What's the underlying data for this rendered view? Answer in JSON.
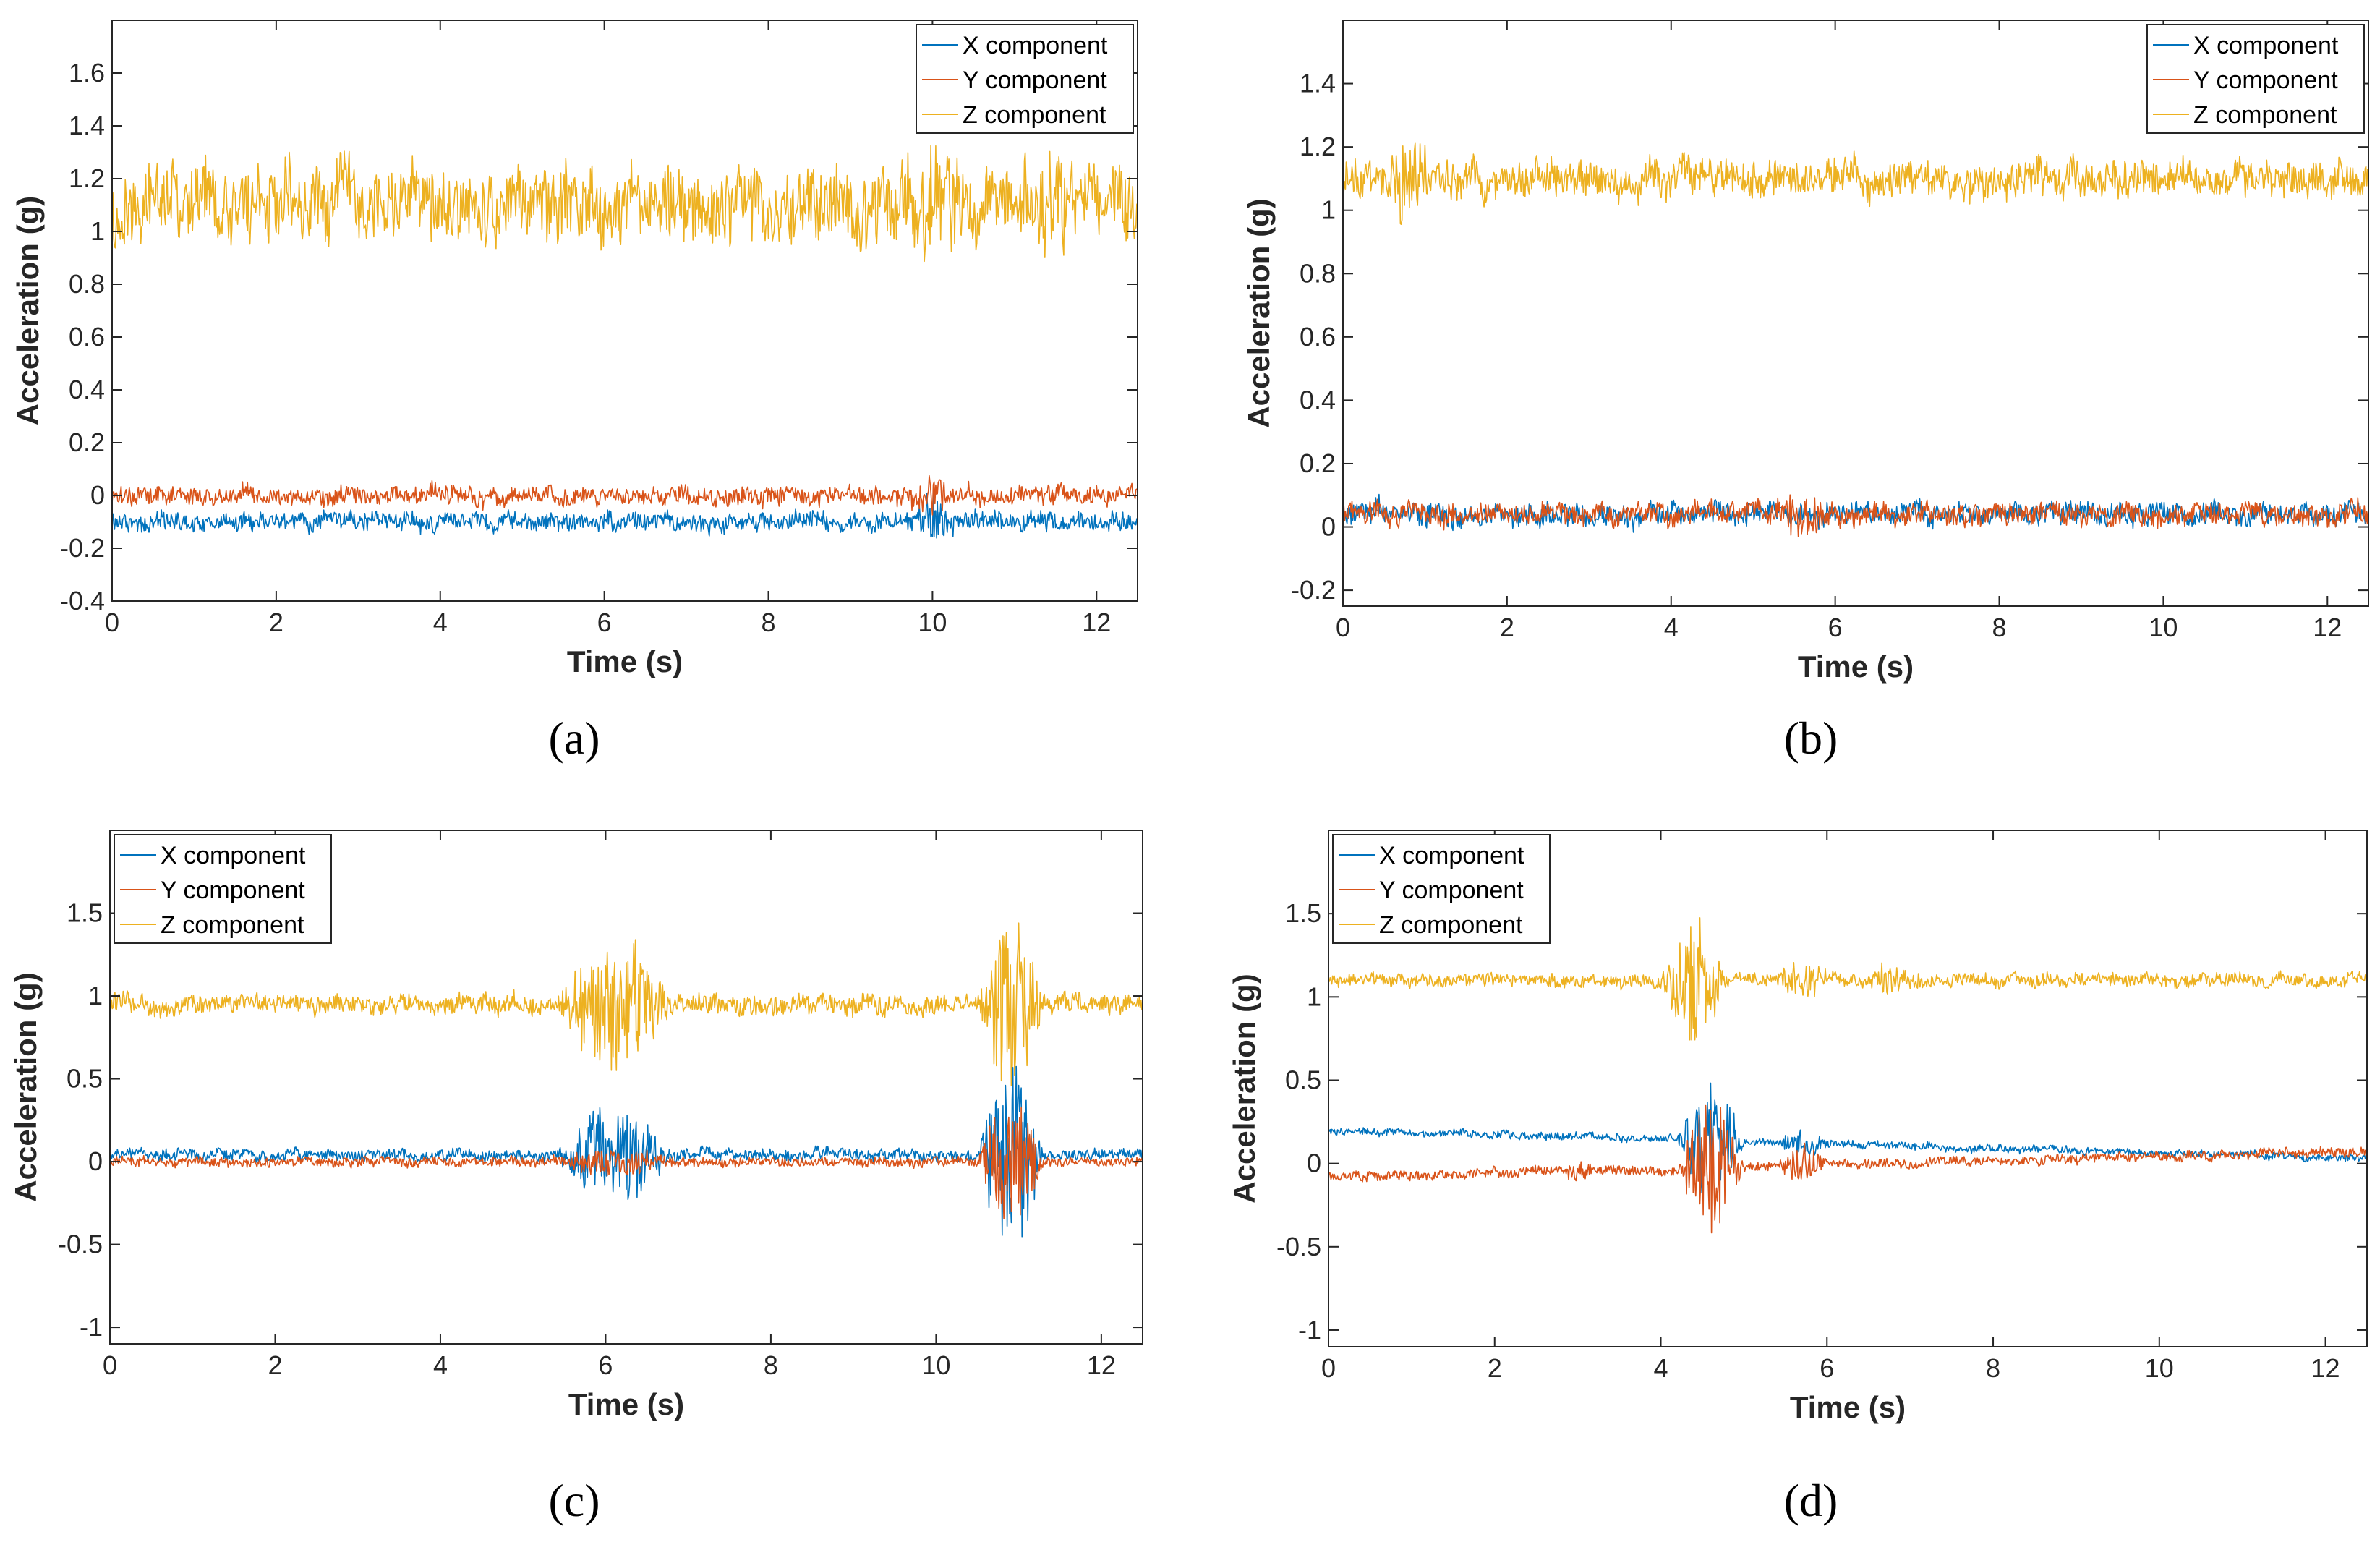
{
  "colors": {
    "x_component": "#0072BD",
    "y_component": "#D95319",
    "z_component": "#EDB120",
    "axis": "#262626"
  },
  "chart_data": [
    {
      "type": "line",
      "caption": "(a)",
      "xlabel": "Time (s)",
      "ylabel": "Acceleration (g)",
      "xlim": [
        0,
        12.5
      ],
      "ylim": [
        -0.4,
        1.8
      ],
      "xticks": [
        0,
        2,
        4,
        6,
        8,
        10,
        12
      ],
      "yticks": [
        -0.4,
        -0.2,
        0,
        0.2,
        0.4,
        0.6,
        0.8,
        1,
        1.2,
        1.4,
        1.6
      ],
      "ytick_labels": [
        "-0.4",
        "-0.2",
        "0",
        "0.2",
        "0.4",
        "0.6",
        "0.8",
        "1",
        "1.2",
        "1.4",
        "1.6"
      ],
      "legend": [
        "X component",
        "Y component",
        "Z component"
      ],
      "legend_position": "top-right",
      "series": [
        {
          "name": "X component",
          "color": "#0072BD",
          "approx_mean": -0.1,
          "noise_amplitude": 0.03,
          "events": [
            {
              "t": 10.0,
              "amplitude": 0.08,
              "width": 0.3
            }
          ]
        },
        {
          "name": "Y component",
          "color": "#D95319",
          "approx_mean": 0.0,
          "noise_amplitude": 0.03,
          "events": [
            {
              "t": 10.0,
              "amplitude": 0.06,
              "width": 0.3
            }
          ]
        },
        {
          "name": "Z component",
          "color": "#EDB120",
          "approx_mean": 1.1,
          "noise_amplitude": 0.12,
          "events": [
            {
              "t": 10.0,
              "amplitude": 0.15,
              "width": 0.5
            },
            {
              "t": 11.5,
              "amplitude": 0.1,
              "width": 0.4
            }
          ]
        }
      ]
    },
    {
      "type": "line",
      "caption": "(b)",
      "xlabel": "Time (s)",
      "ylabel": "Acceleration (g)",
      "xlim": [
        0,
        12.5
      ],
      "ylim": [
        -0.25,
        1.6
      ],
      "xticks": [
        0,
        2,
        4,
        6,
        8,
        10,
        12
      ],
      "yticks": [
        -0.2,
        0,
        0.2,
        0.4,
        0.6,
        0.8,
        1,
        1.2,
        1.4
      ],
      "ytick_labels": [
        "-0.2",
        "0",
        "0.2",
        "0.4",
        "0.6",
        "0.8",
        "1",
        "1.2",
        "1.4"
      ],
      "legend": [
        "X component",
        "Y component",
        "Z component"
      ],
      "legend_position": "top-right",
      "series": [
        {
          "name": "X component",
          "color": "#0072BD",
          "approx_mean": 0.04,
          "noise_amplitude": 0.03,
          "events": []
        },
        {
          "name": "Y component",
          "color": "#D95319",
          "approx_mean": 0.04,
          "noise_amplitude": 0.03,
          "events": [
            {
              "t": 5.6,
              "amplitude": 0.07,
              "width": 0.4
            }
          ]
        },
        {
          "name": "Z component",
          "color": "#EDB120",
          "approx_mean": 1.1,
          "noise_amplitude": 0.05,
          "events": [
            {
              "t": 0.8,
              "amplitude": 0.15,
              "width": 0.3
            }
          ]
        }
      ]
    },
    {
      "type": "line",
      "caption": "(c)",
      "xlabel": "Time (s)",
      "ylabel": "Acceleration (g)",
      "xlim": [
        0,
        12.5
      ],
      "ylim": [
        -1.1,
        2.0
      ],
      "xticks": [
        0,
        2,
        4,
        6,
        8,
        10,
        12
      ],
      "yticks": [
        -1,
        -0.5,
        0,
        0.5,
        1,
        1.5
      ],
      "ytick_labels": [
        "-1",
        "-0.5",
        "0",
        "0.5",
        "1",
        "1.5"
      ],
      "legend": [
        "X component",
        "Y component",
        "Z component"
      ],
      "legend_position": "top-left",
      "series": [
        {
          "name": "X component",
          "color": "#0072BD",
          "approx_mean": 0.04,
          "noise_amplitude": 0.03,
          "events": [
            {
              "t": 6.1,
              "amplitude": 0.3,
              "width": 0.7
            },
            {
              "t": 10.9,
              "amplitude": 0.6,
              "width": 0.4
            }
          ]
        },
        {
          "name": "Y component",
          "color": "#D95319",
          "approx_mean": 0.0,
          "noise_amplitude": 0.025,
          "events": [
            {
              "t": 6.1,
              "amplitude": 0.08,
              "width": 0.7
            },
            {
              "t": 10.9,
              "amplitude": 0.4,
              "width": 0.4
            }
          ]
        },
        {
          "name": "Z component",
          "color": "#EDB120",
          "approx_mean": 0.95,
          "noise_amplitude": 0.05,
          "events": [
            {
              "t": 6.1,
              "amplitude": 0.4,
              "width": 0.7
            },
            {
              "t": 10.9,
              "amplitude": 0.55,
              "width": 0.4
            }
          ]
        }
      ]
    },
    {
      "type": "line",
      "caption": "(d)",
      "xlabel": "Time (s)",
      "ylabel": "Acceleration (g)",
      "xlim": [
        0,
        12.5
      ],
      "ylim": [
        -1.1,
        2.0
      ],
      "xticks": [
        0,
        2,
        4,
        6,
        8,
        10,
        12
      ],
      "yticks": [
        -1,
        -0.5,
        0,
        0.5,
        1,
        1.5
      ],
      "ytick_labels": [
        "-1",
        "-0.5",
        "0",
        "0.5",
        "1",
        "1.5"
      ],
      "legend": [
        "X component",
        "Y component",
        "Z component"
      ],
      "legend_position": "top-left",
      "series": [
        {
          "name": "X component",
          "color": "#0072BD",
          "approx_mean_start": 0.2,
          "approx_mean_end": 0.03,
          "noise_amplitude": 0.02,
          "events": [
            {
              "t": 4.6,
              "amplitude": 0.35,
              "width": 0.4
            },
            {
              "t": 5.7,
              "amplitude": 0.08,
              "width": 0.3
            }
          ]
        },
        {
          "name": "Y component",
          "color": "#D95319",
          "approx_mean_start": -0.08,
          "approx_mean_end": 0.07,
          "noise_amplitude": 0.025,
          "events": [
            {
              "t": 4.6,
              "amplitude": 0.4,
              "width": 0.4
            },
            {
              "t": 3.0,
              "amplitude": 0.08,
              "width": 0.2
            },
            {
              "t": 5.7,
              "amplitude": 0.1,
              "width": 0.3
            }
          ]
        },
        {
          "name": "Z component",
          "color": "#EDB120",
          "approx_mean": 1.1,
          "noise_amplitude": 0.035,
          "events": [
            {
              "t": 4.4,
              "amplitude": 0.35,
              "width": 0.4
            },
            {
              "t": 5.7,
              "amplitude": 0.1,
              "width": 0.4
            },
            {
              "t": 6.8,
              "amplitude": 0.08,
              "width": 0.4
            }
          ]
        }
      ]
    }
  ]
}
